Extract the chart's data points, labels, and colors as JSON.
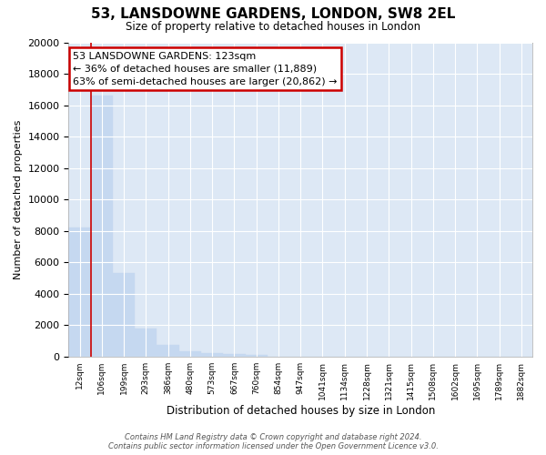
{
  "title": "53, LANSDOWNE GARDENS, LONDON, SW8 2EL",
  "subtitle": "Size of property relative to detached houses in London",
  "xlabel": "Distribution of detached houses by size in London",
  "ylabel": "Number of detached properties",
  "bar_color": "#c5d8f0",
  "bar_edge_color": "#c5d8f0",
  "background_color": "#dde8f5",
  "grid_color": "#ffffff",
  "fig_bg_color": "#ffffff",
  "categories": [
    "12sqm",
    "106sqm",
    "199sqm",
    "293sqm",
    "386sqm",
    "480sqm",
    "573sqm",
    "667sqm",
    "760sqm",
    "854sqm",
    "947sqm",
    "1041sqm",
    "1134sqm",
    "1228sqm",
    "1321sqm",
    "1415sqm",
    "1508sqm",
    "1602sqm",
    "1695sqm",
    "1789sqm",
    "1882sqm"
  ],
  "bar_heights": [
    8200,
    16600,
    5300,
    1800,
    750,
    350,
    220,
    150,
    130,
    0,
    0,
    0,
    0,
    0,
    0,
    0,
    0,
    0,
    0,
    0,
    0
  ],
  "ylim": [
    0,
    20000
  ],
  "yticks": [
    0,
    2000,
    4000,
    6000,
    8000,
    10000,
    12000,
    14000,
    16000,
    18000,
    20000
  ],
  "property_bin_index": 1,
  "annotation_title": "53 LANSDOWNE GARDENS: 123sqm",
  "annotation_line1": "← 36% of detached houses are smaller (11,889)",
  "annotation_line2": "63% of semi-detached houses are larger (20,862) →",
  "annotation_box_color": "#ffffff",
  "annotation_box_edge": "#cc0000",
  "vline_color": "#cc0000",
  "footer_line1": "Contains HM Land Registry data © Crown copyright and database right 2024.",
  "footer_line2": "Contains public sector information licensed under the Open Government Licence v3.0."
}
